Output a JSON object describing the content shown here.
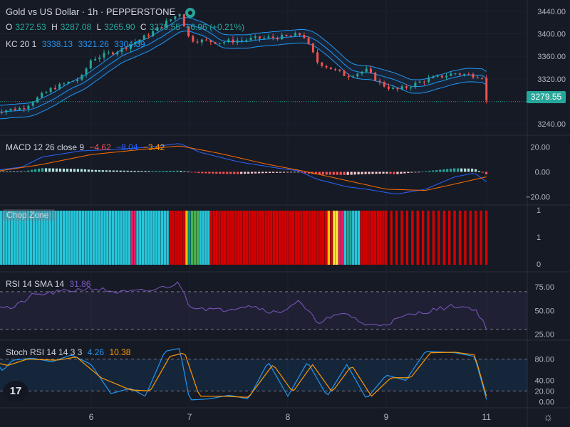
{
  "header": {
    "title": "Gold vs US Dollar · 1h · PEPPERSTONE",
    "ohlc": {
      "o_label": "O",
      "o_value": "3272.53",
      "h_label": "H",
      "h_value": "3287.08",
      "l_label": "L",
      "l_value": "3265.90",
      "c_label": "C",
      "c_value": "3279.55",
      "change": "+6.96 (+0.21%)"
    }
  },
  "indicators": {
    "kc": {
      "label": "KC 20 1",
      "v1": "3338.13",
      "v2": "3321.26",
      "v3": "3304.39"
    },
    "macd": {
      "label": "MACD 12 26 close 9",
      "v1": "−4.62",
      "v2": "−8.04",
      "v3": "−3.42"
    },
    "chop": {
      "label": "Chop Zone"
    },
    "rsi": {
      "label": "RSI 14 SMA 14",
      "value": "31.86"
    },
    "stoch": {
      "label": "Stoch RSI 14 14 3 3",
      "k": "4.26",
      "d": "10.38"
    }
  },
  "current_price": "3279.55",
  "logo_text": "17",
  "colors": {
    "background": "#161a25",
    "up": "#26a69a",
    "down": "#ef5350",
    "kc": "#2196f3",
    "macd_line": "#2962ff",
    "signal_line": "#ff6d00",
    "rsi_line": "#7e57c2",
    "chop_turquoise": "#26c6da",
    "chop_red": "#d50000"
  },
  "chart_data": {
    "type": "candlestick",
    "x_tick_labels": [
      "6",
      "7",
      "8",
      "9",
      "11"
    ],
    "price_axis": {
      "ticks": [
        "3440.00",
        "3400.00",
        "3360.00",
        "3320.00",
        "3240.00"
      ],
      "ylim": [
        3230,
        3450
      ]
    },
    "price_anchors": [
      {
        "x": 0.0,
        "y": 3262
      },
      {
        "x": 0.3,
        "y": 3268
      },
      {
        "x": 0.6,
        "y": 3303
      },
      {
        "x": 0.9,
        "y": 3322
      },
      {
        "x": 1.0,
        "y": 3355
      },
      {
        "x": 1.3,
        "y": 3372
      },
      {
        "x": 1.6,
        "y": 3400
      },
      {
        "x": 1.9,
        "y": 3437
      },
      {
        "x": 2.0,
        "y": 3390
      },
      {
        "x": 2.3,
        "y": 3385
      },
      {
        "x": 2.7,
        "y": 3392
      },
      {
        "x": 3.0,
        "y": 3395
      },
      {
        "x": 3.15,
        "y": 3400
      },
      {
        "x": 3.3,
        "y": 3350
      },
      {
        "x": 3.6,
        "y": 3325
      },
      {
        "x": 3.8,
        "y": 3335
      },
      {
        "x": 3.95,
        "y": 3310
      },
      {
        "x": 4.1,
        "y": 3300
      },
      {
        "x": 4.2,
        "y": 3305
      },
      {
        "x": 4.4,
        "y": 3318
      },
      {
        "x": 4.7,
        "y": 3330
      },
      {
        "x": 5.0,
        "y": 3324
      },
      {
        "x": 5.02,
        "y": 3280
      }
    ],
    "macd": {
      "ticks": [
        "20.00",
        "0.00",
        "−20.00"
      ],
      "ylim": [
        -25,
        25
      ],
      "macd_anchors": [
        {
          "x": 0.0,
          "y": 1
        },
        {
          "x": 0.3,
          "y": 4
        },
        {
          "x": 0.5,
          "y": 12
        },
        {
          "x": 0.9,
          "y": 17
        },
        {
          "x": 1.2,
          "y": 18
        },
        {
          "x": 1.6,
          "y": 20
        },
        {
          "x": 1.9,
          "y": 23
        },
        {
          "x": 2.1,
          "y": 16
        },
        {
          "x": 2.5,
          "y": 8
        },
        {
          "x": 2.9,
          "y": 3
        },
        {
          "x": 3.1,
          "y": 1
        },
        {
          "x": 3.3,
          "y": -6
        },
        {
          "x": 3.6,
          "y": -12
        },
        {
          "x": 3.8,
          "y": -14
        },
        {
          "x": 4.1,
          "y": -18
        },
        {
          "x": 4.4,
          "y": -14
        },
        {
          "x": 4.7,
          "y": -4
        },
        {
          "x": 4.9,
          "y": -1
        },
        {
          "x": 5.02,
          "y": -8
        }
      ],
      "signal_anchors": [
        {
          "x": 0.0,
          "y": 0
        },
        {
          "x": 0.5,
          "y": 6
        },
        {
          "x": 1.0,
          "y": 14
        },
        {
          "x": 1.5,
          "y": 18
        },
        {
          "x": 1.9,
          "y": 21
        },
        {
          "x": 2.3,
          "y": 15
        },
        {
          "x": 2.8,
          "y": 6
        },
        {
          "x": 3.2,
          "y": 0
        },
        {
          "x": 3.6,
          "y": -7
        },
        {
          "x": 4.0,
          "y": -14
        },
        {
          "x": 4.4,
          "y": -15
        },
        {
          "x": 4.8,
          "y": -8
        },
        {
          "x": 5.02,
          "y": -4
        }
      ]
    },
    "chop_zone": {
      "ticks": [
        "1",
        "1",
        "0"
      ],
      "segments": [
        {
          "x0": 0.0,
          "x1": 1.4,
          "color": "#26c6da"
        },
        {
          "x0": 1.4,
          "x1": 1.45,
          "color": "#e91e63"
        },
        {
          "x0": 1.45,
          "x1": 1.8,
          "color": "#26c6da"
        },
        {
          "x0": 1.8,
          "x1": 1.95,
          "color": "#d50000"
        },
        {
          "x0": 1.95,
          "x1": 1.98,
          "color": "#ffc107"
        },
        {
          "x0": 1.98,
          "x1": 2.02,
          "color": "#009688"
        },
        {
          "x0": 2.02,
          "x1": 2.09,
          "color": "#4caf50"
        },
        {
          "x0": 2.09,
          "x1": 2.2,
          "color": "#26c6da"
        },
        {
          "x0": 2.2,
          "x1": 3.4,
          "color": "#d50000"
        },
        {
          "x0": 3.4,
          "x1": 3.43,
          "color": "#ffc107"
        },
        {
          "x0": 3.43,
          "x1": 3.47,
          "color": "#d50000"
        },
        {
          "x0": 3.47,
          "x1": 3.51,
          "color": "#ffeb3b"
        },
        {
          "x0": 3.51,
          "x1": 3.56,
          "color": "#e91e63"
        },
        {
          "x0": 3.56,
          "x1": 3.6,
          "color": "#26c6da"
        },
        {
          "x0": 3.6,
          "x1": 3.64,
          "color": "#26a69a"
        },
        {
          "x0": 3.64,
          "x1": 3.66,
          "color": "#ffeb3b"
        },
        {
          "x0": 3.66,
          "x1": 3.75,
          "color": "#26c6da"
        },
        {
          "x0": 3.75,
          "x1": 4.0,
          "color": "#d50000"
        }
      ]
    },
    "rsi": {
      "ticks": [
        "75.00",
        "50.00",
        "25.00"
      ],
      "ylim": [
        20,
        85
      ],
      "upper": 70,
      "lower": 30,
      "rsi_anchors": [
        {
          "x": 0.0,
          "y": 57
        },
        {
          "x": 0.2,
          "y": 52
        },
        {
          "x": 0.4,
          "y": 66
        },
        {
          "x": 0.7,
          "y": 70
        },
        {
          "x": 1.0,
          "y": 74
        },
        {
          "x": 1.3,
          "y": 69
        },
        {
          "x": 1.6,
          "y": 71
        },
        {
          "x": 1.9,
          "y": 79
        },
        {
          "x": 2.0,
          "y": 55
        },
        {
          "x": 2.3,
          "y": 50
        },
        {
          "x": 2.6,
          "y": 56
        },
        {
          "x": 2.9,
          "y": 47
        },
        {
          "x": 3.1,
          "y": 60
        },
        {
          "x": 3.3,
          "y": 38
        },
        {
          "x": 3.6,
          "y": 47
        },
        {
          "x": 3.8,
          "y": 34
        },
        {
          "x": 4.0,
          "y": 36
        },
        {
          "x": 4.2,
          "y": 44
        },
        {
          "x": 4.4,
          "y": 49
        },
        {
          "x": 4.7,
          "y": 55
        },
        {
          "x": 4.9,
          "y": 52
        },
        {
          "x": 5.02,
          "y": 32
        }
      ],
      "sma_anchors": [
        {
          "x": 0.0,
          "y": 56
        },
        {
          "x": 0.5,
          "y": 62
        },
        {
          "x": 1.0,
          "y": 68
        },
        {
          "x": 1.5,
          "y": 70
        },
        {
          "x": 1.9,
          "y": 71
        },
        {
          "x": 2.3,
          "y": 60
        },
        {
          "x": 2.8,
          "y": 52
        },
        {
          "x": 3.2,
          "y": 49
        },
        {
          "x": 3.6,
          "y": 44
        },
        {
          "x": 4.0,
          "y": 41
        },
        {
          "x": 4.4,
          "y": 45
        },
        {
          "x": 4.8,
          "y": 51
        },
        {
          "x": 5.02,
          "y": 45
        }
      ]
    },
    "stoch_rsi": {
      "ticks": [
        "80.00",
        "40.00",
        "20.00",
        "0.00"
      ],
      "ylim": [
        -5,
        105
      ],
      "upper": 80,
      "lower": 20,
      "k_anchors": [
        {
          "x": 0.0,
          "y": 80
        },
        {
          "x": 0.1,
          "y": 58
        },
        {
          "x": 0.2,
          "y": 78
        },
        {
          "x": 0.4,
          "y": 82
        },
        {
          "x": 0.6,
          "y": 75
        },
        {
          "x": 0.8,
          "y": 88
        },
        {
          "x": 1.0,
          "y": 70
        },
        {
          "x": 1.2,
          "y": 15
        },
        {
          "x": 1.4,
          "y": 25
        },
        {
          "x": 1.55,
          "y": 10
        },
        {
          "x": 1.75,
          "y": 95
        },
        {
          "x": 1.9,
          "y": 100
        },
        {
          "x": 2.0,
          "y": 3
        },
        {
          "x": 2.2,
          "y": 5
        },
        {
          "x": 2.4,
          "y": 12
        },
        {
          "x": 2.6,
          "y": 5
        },
        {
          "x": 2.8,
          "y": 75
        },
        {
          "x": 3.0,
          "y": 10
        },
        {
          "x": 3.2,
          "y": 75
        },
        {
          "x": 3.4,
          "y": 10
        },
        {
          "x": 3.6,
          "y": 70
        },
        {
          "x": 3.8,
          "y": 5
        },
        {
          "x": 4.0,
          "y": 50
        },
        {
          "x": 4.2,
          "y": 40
        },
        {
          "x": 4.4,
          "y": 95
        },
        {
          "x": 4.7,
          "y": 92
        },
        {
          "x": 4.9,
          "y": 85
        },
        {
          "x": 5.02,
          "y": 4
        }
      ],
      "d_anchors": [
        {
          "x": 0.0,
          "y": 75
        },
        {
          "x": 0.15,
          "y": 68
        },
        {
          "x": 0.35,
          "y": 80
        },
        {
          "x": 0.65,
          "y": 78
        },
        {
          "x": 0.85,
          "y": 84
        },
        {
          "x": 1.1,
          "y": 45
        },
        {
          "x": 1.4,
          "y": 22
        },
        {
          "x": 1.6,
          "y": 20
        },
        {
          "x": 1.8,
          "y": 85
        },
        {
          "x": 1.95,
          "y": 92
        },
        {
          "x": 2.1,
          "y": 10
        },
        {
          "x": 2.35,
          "y": 10
        },
        {
          "x": 2.6,
          "y": 8
        },
        {
          "x": 2.85,
          "y": 70
        },
        {
          "x": 3.05,
          "y": 18
        },
        {
          "x": 3.25,
          "y": 70
        },
        {
          "x": 3.45,
          "y": 18
        },
        {
          "x": 3.65,
          "y": 68
        },
        {
          "x": 3.85,
          "y": 10
        },
        {
          "x": 4.05,
          "y": 45
        },
        {
          "x": 4.25,
          "y": 45
        },
        {
          "x": 4.45,
          "y": 92
        },
        {
          "x": 4.7,
          "y": 93
        },
        {
          "x": 4.9,
          "y": 88
        },
        {
          "x": 5.02,
          "y": 10
        }
      ]
    }
  }
}
